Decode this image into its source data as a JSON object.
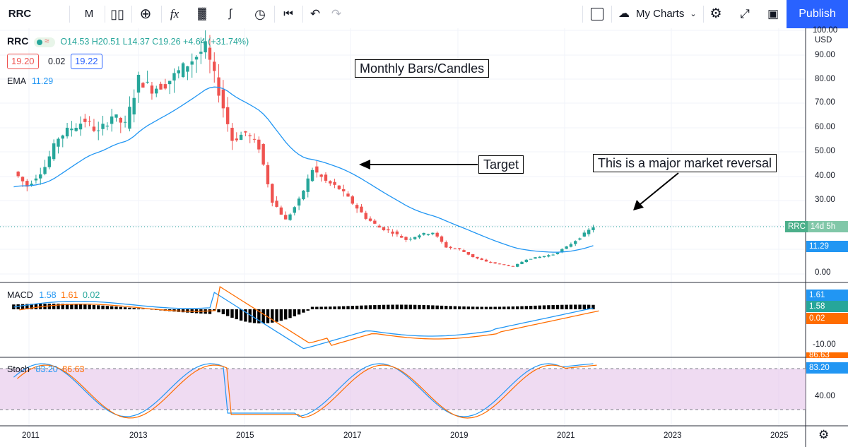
{
  "toolbar": {
    "symbol": "RRC",
    "interval": "M",
    "my_charts": "My Charts",
    "publish": "Publish"
  },
  "legend": {
    "symbol": "RRC",
    "ohlc": "O14.53  H20.51  L14.37  C19.26  +4.64 (+31.74%)",
    "bid": "19.20",
    "spread": "0.02",
    "ask": "19.22",
    "ema_label": "EMA",
    "ema_value": "11.29",
    "macd_label": "MACD",
    "macd_v1": "1.58",
    "macd_v2": "1.61",
    "macd_v3": "0.02",
    "stoch_label": "Stoch",
    "stoch_v1": "83.20",
    "stoch_v2": "86.63"
  },
  "annotations": {
    "title": "Monthly Bars/Candles",
    "target": "Target",
    "reversal": "This is a major market reversal"
  },
  "price_axis": {
    "ticks": [
      "100.00",
      "90.00",
      "80.00",
      "70.00",
      "60.00",
      "50.00",
      "40.00",
      "30.00",
      "0.00"
    ],
    "currency": "USD",
    "tag_symbol": "RRC",
    "tag_time": "14d 5h",
    "ema_tag": "11.29"
  },
  "macd_axis": {
    "ticks": [
      "-10.00"
    ],
    "tags": [
      "1.61",
      "1.58",
      "0.02"
    ]
  },
  "stoch_axis": {
    "ticks": [
      "40.00"
    ],
    "tags": [
      "86.63",
      "83.20"
    ]
  },
  "time_axis": [
    "2011",
    "2013",
    "2015",
    "2017",
    "2019",
    "2021",
    "2023",
    "2025"
  ],
  "chart_data": {
    "type": "candlestick",
    "title": "Monthly Bars/Candles",
    "symbol": "RRC",
    "interval": "monthly",
    "x_range": [
      "2010-11",
      "2025-12"
    ],
    "price_scale": "logarithmic",
    "ylim": [
      0,
      100
    ],
    "close_series": [
      [
        "2010-11",
        42
      ],
      [
        "2011-02",
        36
      ],
      [
        "2011-06",
        44
      ],
      [
        "2011-09",
        56
      ],
      [
        "2011-12",
        60
      ],
      [
        "2012-03",
        63
      ],
      [
        "2012-06",
        58
      ],
      [
        "2012-09",
        65
      ],
      [
        "2012-12",
        61
      ],
      [
        "2013-03",
        80
      ],
      [
        "2013-06",
        76
      ],
      [
        "2013-09",
        78
      ],
      [
        "2013-12",
        83
      ],
      [
        "2014-03",
        88
      ],
      [
        "2014-06",
        93
      ],
      [
        "2014-09",
        75
      ],
      [
        "2014-12",
        55
      ],
      [
        "2015-03",
        58
      ],
      [
        "2015-06",
        52
      ],
      [
        "2015-09",
        30
      ],
      [
        "2015-12",
        22
      ],
      [
        "2016-03",
        30
      ],
      [
        "2016-06",
        43
      ],
      [
        "2016-09",
        38
      ],
      [
        "2016-12",
        35
      ],
      [
        "2017-03",
        29
      ],
      [
        "2017-06",
        23
      ],
      [
        "2017-09",
        19
      ],
      [
        "2017-12",
        17
      ],
      [
        "2018-03",
        14
      ],
      [
        "2018-06",
        16
      ],
      [
        "2018-09",
        17
      ],
      [
        "2018-12",
        11
      ],
      [
        "2019-03",
        10
      ],
      [
        "2019-06",
        7
      ],
      [
        "2019-09",
        5
      ],
      [
        "2019-12",
        4
      ],
      [
        "2020-03",
        3
      ],
      [
        "2020-06",
        6
      ],
      [
        "2020-09",
        7
      ],
      [
        "2020-12",
        8
      ],
      [
        "2021-03",
        11
      ],
      [
        "2021-06",
        15
      ],
      [
        "2021-09",
        19.26
      ]
    ],
    "ema": {
      "name": "EMA",
      "last": 11.29
    },
    "macd": {
      "values": [
        1.58,
        1.61,
        0.02
      ],
      "axis_tick": -10
    },
    "stoch": {
      "k": 83.2,
      "d": 86.63,
      "bands": [
        80,
        20
      ]
    }
  }
}
